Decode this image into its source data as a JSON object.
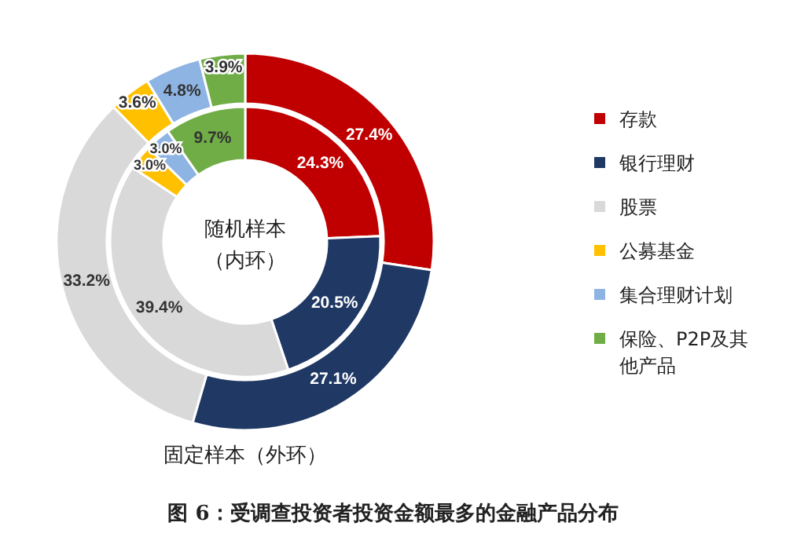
{
  "chart_data": {
    "type": "donut",
    "title": "图 6：受调查投资者投资金额最多的金融产品分布",
    "categories": [
      "存款",
      "银行理财",
      "股票",
      "公募基金",
      "集合理财计划",
      "保险、P2P及其他产品"
    ],
    "colors": [
      "#c00000",
      "#1f3864",
      "#d9d9d9",
      "#ffc000",
      "#8eb4e3",
      "#70ad47"
    ],
    "series": [
      {
        "name": "固定样本（外环）",
        "values": [
          27.4,
          27.1,
          33.2,
          3.6,
          4.8,
          3.9
        ],
        "value_labels": [
          "27.4%",
          "27.1%",
          "33.2%",
          "3.6%",
          "4.8%",
          "3.9%"
        ]
      },
      {
        "name": "随机样本（内环）",
        "values": [
          24.3,
          20.5,
          39.4,
          3.0,
          3.0,
          9.7
        ],
        "value_labels": [
          "24.3%",
          "20.5%",
          "39.4%",
          "3.0%",
          "3.0%",
          "9.7%"
        ]
      }
    ],
    "legend": "right"
  }
}
